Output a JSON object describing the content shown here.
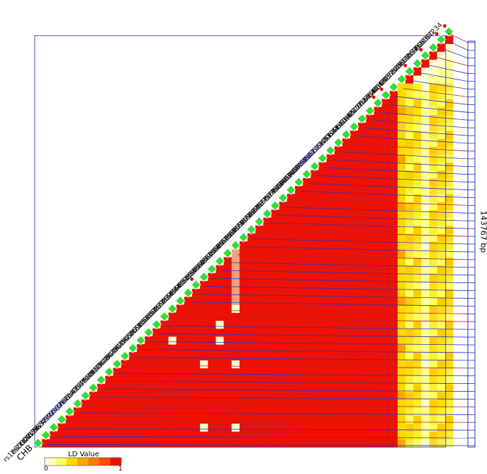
{
  "chart_data": {
    "type": "heatmap",
    "title": "",
    "population": "CHB",
    "region_length": "143767 bp",
    "legend": {
      "title": "LD Value",
      "min": "0",
      "max": "1",
      "colors": [
        "#ffffd0",
        "#ffff60",
        "#ffd800",
        "#ffa500",
        "#ff7a00",
        "#ff4a00",
        "#ee1100"
      ]
    },
    "snps": [
      "rs1890000",
      "rs2184036",
      "rs2225637",
      "rs2424992",
      "rs3736762",
      "rs3746455",
      "rs3761147",
      "rs4142007",
      "rs4277599",
      "rs4911153",
      "rs4911418",
      "rs4911420",
      "rs4911421",
      "rs4911422",
      "rs4911423",
      "rs6059051",
      "rs6059052",
      "rs6059827",
      "rs6059834",
      "rs6059844",
      "rs6059851",
      "rs6059856",
      "rs6059860",
      "rs6059861",
      "rs6059866",
      "rs6059867",
      "rs6059869",
      "rs6059875",
      "rs6059878",
      "rs6059880",
      "rs6087577",
      "rs6087579",
      "rs6087588",
      "rs6088483",
      "rs6088488",
      "rs6088498",
      "rs6088502",
      "rs6088512",
      "rs6119497",
      "rs6120644",
      "rs6120650",
      "rs6141465",
      "rs6142157",
      "rs6579165",
      "rs12624640",
      "rs6120663",
      "rs6142151",
      "rs10485505",
      "rs17305568",
      "rs4911154",
      "rs7269926",
      "rs7266300",
      "rs1167234"
    ],
    "highlighted_blue": [
      "rs3746455",
      "rs6088512"
    ],
    "marked_red_dot": [
      "rs6059851",
      "rs6579165",
      "rs12624640",
      "rs10485505",
      "rs4911154",
      "rs7266300",
      "rs1167234"
    ]
  }
}
